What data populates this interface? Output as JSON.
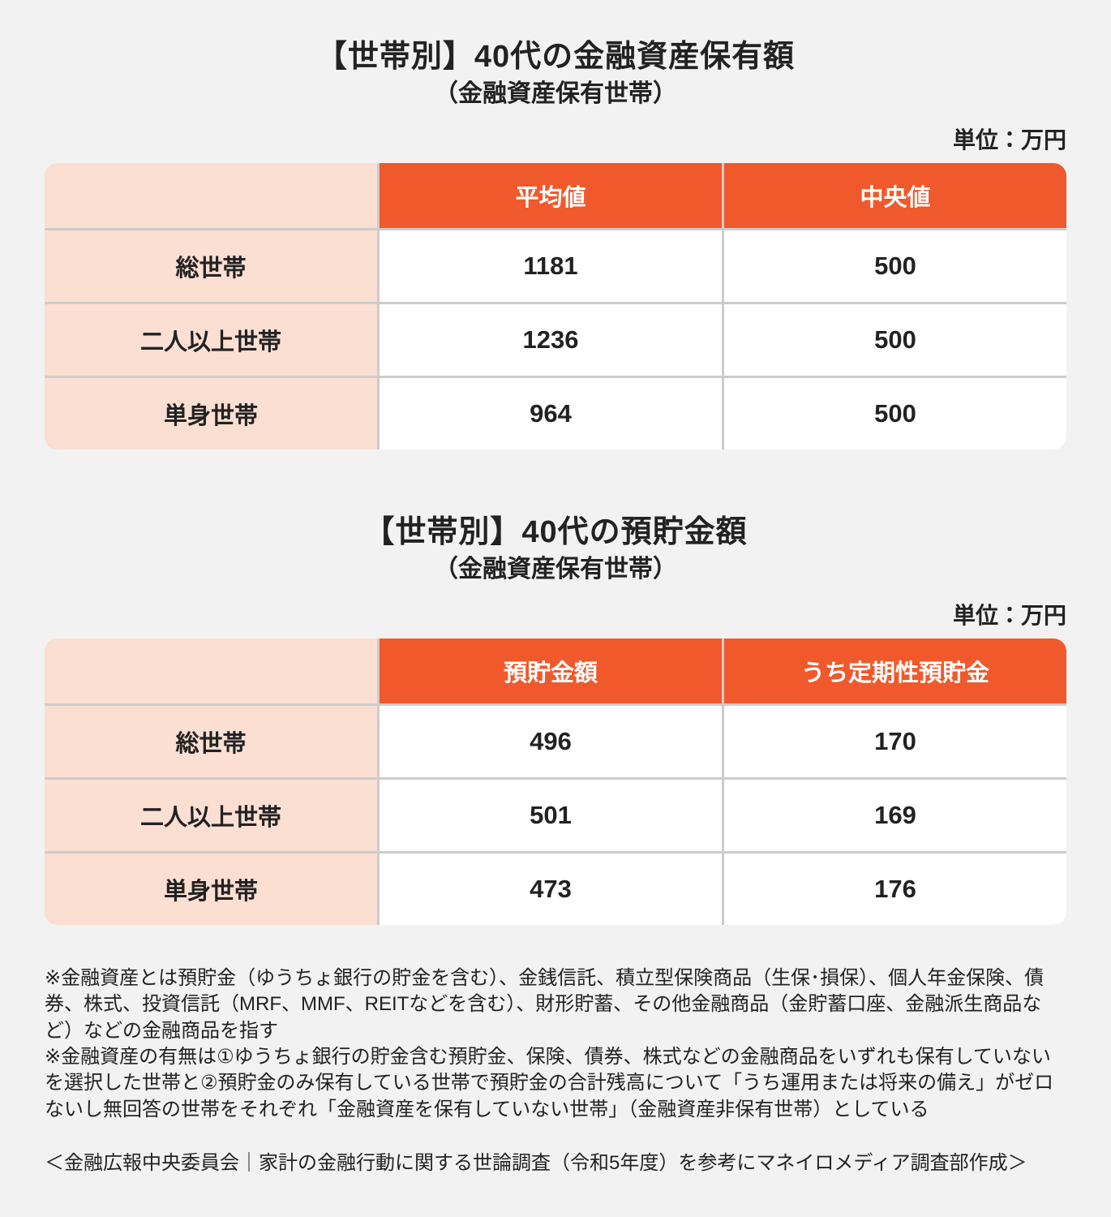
{
  "sections": [
    {
      "title": "【世帯別】40代の金融資産保有額",
      "subtitle": "（金融資産保有世帯）",
      "unit_label": "単位：万円",
      "table": {
        "corner_label": "",
        "col_headers": [
          "平均値",
          "中央値"
        ],
        "rows": [
          {
            "label": "総世帯",
            "values": [
              "1181",
              "500"
            ]
          },
          {
            "label": "二人以上世帯",
            "values": [
              "1236",
              "500"
            ]
          },
          {
            "label": "単身世帯",
            "values": [
              "964",
              "500"
            ]
          }
        ]
      }
    },
    {
      "title": "【世帯別】40代の預貯金額",
      "subtitle": "（金融資産保有世帯）",
      "unit_label": "単位：万円",
      "table": {
        "corner_label": "",
        "col_headers": [
          "預貯金額",
          "うち定期性預貯金"
        ],
        "rows": [
          {
            "label": "総世帯",
            "values": [
              "496",
              "170"
            ]
          },
          {
            "label": "二人以上世帯",
            "values": [
              "501",
              "169"
            ]
          },
          {
            "label": "単身世帯",
            "values": [
              "473",
              "176"
            ]
          }
        ]
      }
    }
  ],
  "footnotes": [
    "※金融資産とは預貯金（ゆうちょ銀行の貯金を含む）、金銭信託、積立型保険商品（生保･損保）、個人年金保険、債券、株式、投資信託（MRF、MMF、REITなどを含む）、財形貯蓄、その他金融商品（金貯蓄口座、金融派生商品など）などの金融商品を指す",
    "※金融資産の有無は①ゆうちょ銀行の貯金含む預貯金、保険、債券、株式などの金融商品をいずれも保有していないを選択した世帯と②預貯金のみ保有している世帯で預貯金の合計残高について「うち運用または将来の備え」がゼロないし無回答の世帯をそれぞれ「金融資産を保有していない世帯」（金融資産非保有世帯）としている"
  ],
  "source": "＜金融広報中央委員会｜家計の金融行動に関する世論調査（令和5年度）を参考にマネイロメディア調査部作成＞",
  "colors": {
    "accent_orange": "#F0592B",
    "label_peach": "#FADFD2",
    "page_background": "#F2F2F2",
    "divider_gray": "#CCCCCC",
    "text_dark": "#222222",
    "header_text_white": "#FFFFFF"
  },
  "chart_data": [
    {
      "type": "table",
      "title": "【世帯別】40代の金融資産保有額（金融資産保有世帯）",
      "unit": "万円",
      "columns": [
        "",
        "平均値",
        "中央値"
      ],
      "rows": [
        [
          "総世帯",
          1181,
          500
        ],
        [
          "二人以上世帯",
          1236,
          500
        ],
        [
          "単身世帯",
          964,
          500
        ]
      ]
    },
    {
      "type": "table",
      "title": "【世帯別】40代の預貯金額（金融資産保有世帯）",
      "unit": "万円",
      "columns": [
        "",
        "預貯金額",
        "うち定期性預貯金"
      ],
      "rows": [
        [
          "総世帯",
          496,
          170
        ],
        [
          "二人以上世帯",
          501,
          169
        ],
        [
          "単身世帯",
          473,
          176
        ]
      ]
    }
  ]
}
